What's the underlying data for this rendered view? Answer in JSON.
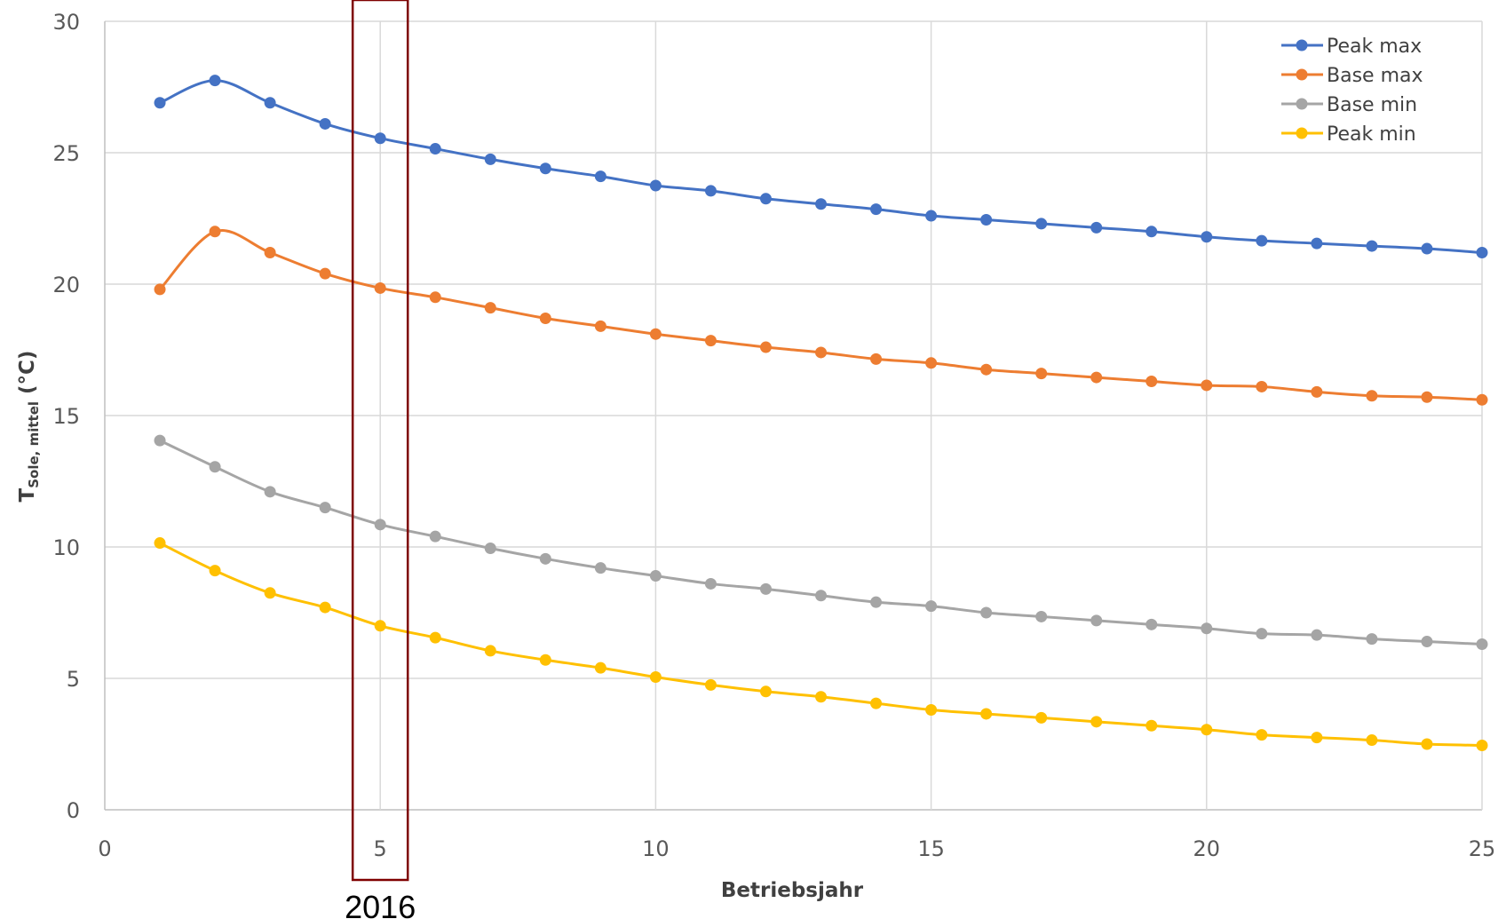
{
  "chart_data": {
    "type": "line",
    "xlabel": "Betriebsjahr",
    "ylabel_main": "T",
    "ylabel_sub": "Sole, mittel",
    "ylabel_unit": " (°C)",
    "xlim": [
      0,
      25
    ],
    "ylim": [
      0,
      30
    ],
    "xticks": [
      0,
      5,
      10,
      15,
      20,
      25
    ],
    "yticks": [
      0,
      5,
      10,
      15,
      20,
      25,
      30
    ],
    "grid": true,
    "legend_position": "top-right",
    "x": [
      1,
      2,
      3,
      4,
      5,
      6,
      7,
      8,
      9,
      10,
      11,
      12,
      13,
      14,
      15,
      16,
      17,
      18,
      19,
      20,
      21,
      22,
      23,
      24,
      25
    ],
    "series": [
      {
        "name": "Peak max",
        "color": "#4472C4",
        "values": [
          26.9,
          27.75,
          26.9,
          26.1,
          25.55,
          25.15,
          24.75,
          24.4,
          24.1,
          23.75,
          23.55,
          23.25,
          23.05,
          22.85,
          22.6,
          22.45,
          22.3,
          22.15,
          22.0,
          21.8,
          21.65,
          21.55,
          21.45,
          21.35,
          21.2
        ]
      },
      {
        "name": "Base max",
        "color": "#ED7D31",
        "values": [
          19.8,
          22.0,
          21.2,
          20.4,
          19.85,
          19.5,
          19.1,
          18.7,
          18.4,
          18.1,
          17.85,
          17.6,
          17.4,
          17.15,
          17.0,
          16.75,
          16.6,
          16.45,
          16.3,
          16.15,
          16.1,
          15.9,
          15.75,
          15.7,
          15.6
        ]
      },
      {
        "name": "Base min",
        "color": "#A5A5A5",
        "values": [
          14.05,
          13.05,
          12.1,
          11.5,
          10.85,
          10.4,
          9.95,
          9.55,
          9.2,
          8.9,
          8.6,
          8.4,
          8.15,
          7.9,
          7.75,
          7.5,
          7.35,
          7.2,
          7.05,
          6.9,
          6.7,
          6.65,
          6.5,
          6.4,
          6.3
        ]
      },
      {
        "name": "Peak min",
        "color": "#FFC000",
        "values": [
          10.15,
          9.1,
          8.25,
          7.7,
          7.0,
          6.55,
          6.05,
          5.7,
          5.4,
          5.05,
          4.75,
          4.5,
          4.3,
          4.05,
          3.8,
          3.65,
          3.5,
          3.35,
          3.2,
          3.05,
          2.85,
          2.75,
          2.65,
          2.5,
          2.45
        ]
      }
    ],
    "annotation": {
      "label": "2016",
      "x_from": 4.5,
      "x_to": 5.5,
      "color": "#7F0000"
    }
  }
}
